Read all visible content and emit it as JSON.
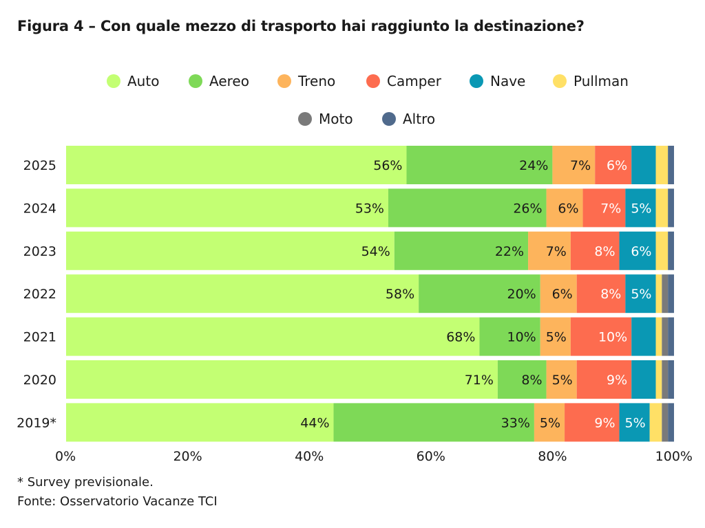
{
  "title": "Figura 4 – Con quale mezzo di trasporto hai raggiunto la destinazione?",
  "notes": {
    "survey": "* Survey previsionale.",
    "source": "Fonte: Osservatorio Vacanze TCI"
  },
  "chart_data": {
    "type": "bar",
    "orientation": "horizontal",
    "stacked": true,
    "normalized": true,
    "categories": [
      "2025",
      "2024",
      "2023",
      "2022",
      "2021",
      "2020",
      "2019*"
    ],
    "xlim": [
      0,
      100
    ],
    "x_ticks": [
      "0%",
      "20%",
      "40%",
      "60%",
      "80%",
      "100%"
    ],
    "grid": false,
    "legend_position": "top",
    "series": [
      {
        "name": "Auto",
        "color": "#c3ff73",
        "label_color": "#1a1a1a",
        "values": [
          56,
          53,
          54,
          58,
          68,
          71,
          44
        ]
      },
      {
        "name": "Aereo",
        "color": "#7ed957",
        "label_color": "#1a1a1a",
        "values": [
          24,
          26,
          22,
          20,
          10,
          8,
          33
        ]
      },
      {
        "name": "Treno",
        "color": "#fdb45c",
        "label_color": "#1a1a1a",
        "values": [
          7,
          6,
          7,
          6,
          5,
          5,
          5
        ]
      },
      {
        "name": "Camper",
        "color": "#fd6c4f",
        "label_color": "#ffffff",
        "values": [
          6,
          7,
          8,
          8,
          10,
          9,
          9
        ]
      },
      {
        "name": "Nave",
        "color": "#0a98b4",
        "label_color": "#ffffff",
        "values": [
          4,
          5,
          6,
          5,
          4,
          4,
          5
        ]
      },
      {
        "name": "Pullman",
        "color": "#ffe066",
        "label_color": "#1a1a1a",
        "values": [
          2,
          2,
          2,
          1,
          1,
          1,
          2
        ]
      },
      {
        "name": "Moto",
        "color": "#7a7a7a",
        "label_color": "#ffffff",
        "values": [
          0,
          0,
          0,
          1,
          1,
          1,
          1
        ]
      },
      {
        "name": "Altro",
        "color": "#506a8c",
        "label_color": "#ffffff",
        "values": [
          1,
          1,
          1,
          1,
          1,
          1,
          1
        ]
      }
    ],
    "data_labels": [
      [
        "56%",
        "24%",
        "7%",
        "6%",
        "",
        "",
        "",
        ""
      ],
      [
        "53%",
        "26%",
        "6%",
        "7%",
        "5%",
        "",
        "",
        ""
      ],
      [
        "54%",
        "22%",
        "7%",
        "8%",
        "6%",
        "",
        "",
        ""
      ],
      [
        "58%",
        "20%",
        "6%",
        "8%",
        "5%",
        "",
        "",
        ""
      ],
      [
        "68%",
        "10%",
        "5%",
        "10%",
        "",
        "",
        "",
        ""
      ],
      [
        "71%",
        "8%",
        "5%",
        "9%",
        "",
        "",
        "",
        ""
      ],
      [
        "44%",
        "33%",
        "5%",
        "9%",
        "5%",
        "",
        "",
        ""
      ]
    ]
  }
}
